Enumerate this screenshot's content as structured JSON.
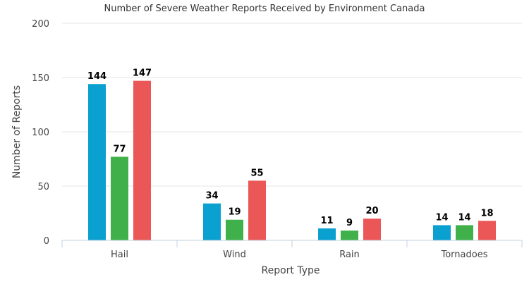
{
  "chart_data": {
    "type": "bar",
    "title": "Number of Severe Weather Reports Received by Environment Canada",
    "xlabel": "Report Type",
    "ylabel": "Number of Reports",
    "categories": [
      "Hail",
      "Wind",
      "Rain",
      "Tornadoes"
    ],
    "series": [
      {
        "values": [
          144,
          34,
          11,
          14
        ],
        "color": "#0aa0cf"
      },
      {
        "values": [
          77,
          19,
          9,
          14
        ],
        "color": "#3fb04a"
      },
      {
        "values": [
          147,
          55,
          20,
          18
        ],
        "color": "#eb5757"
      }
    ],
    "ylim": [
      0,
      200
    ],
    "yticks": [
      0,
      50,
      100,
      150,
      200
    ],
    "grid": true,
    "legend": "none"
  }
}
